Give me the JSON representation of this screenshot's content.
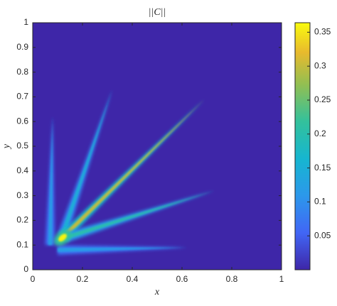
{
  "chart_data": {
    "type": "heatmap",
    "title": "||C||",
    "xlabel": "x",
    "ylabel": "y",
    "xlim": [
      0,
      1
    ],
    "ylim": [
      0,
      1
    ],
    "xticks": [
      0,
      0.2,
      0.4,
      0.6,
      0.8,
      1
    ],
    "yticks": [
      0,
      0.1,
      0.2,
      0.3,
      0.4,
      0.5,
      0.6,
      0.7,
      0.8,
      0.9,
      1
    ],
    "clim": [
      0,
      0.364
    ],
    "cticks": [
      0.05,
      0.1,
      0.15,
      0.2,
      0.25,
      0.3,
      0.35
    ],
    "colormap": "parula",
    "rays": [
      {
        "x": [
          0.07,
          0.08
        ],
        "y": [
          0.1,
          0.62
        ],
        "peak": 0.12
      },
      {
        "x": [
          0.12,
          0.32
        ],
        "y": [
          0.14,
          0.73
        ],
        "peak": 0.15
      },
      {
        "x": [
          0.12,
          0.69
        ],
        "y": [
          0.13,
          0.69
        ],
        "peak": 0.3
      },
      {
        "x": [
          0.13,
          0.73
        ],
        "y": [
          0.13,
          0.32
        ],
        "peak": 0.2
      },
      {
        "x": [
          0.1,
          0.62
        ],
        "y": [
          0.08,
          0.09
        ],
        "peak": 0.12
      }
    ],
    "hotspot": {
      "x": 0.12,
      "y": 0.13,
      "value": 0.36
    }
  }
}
